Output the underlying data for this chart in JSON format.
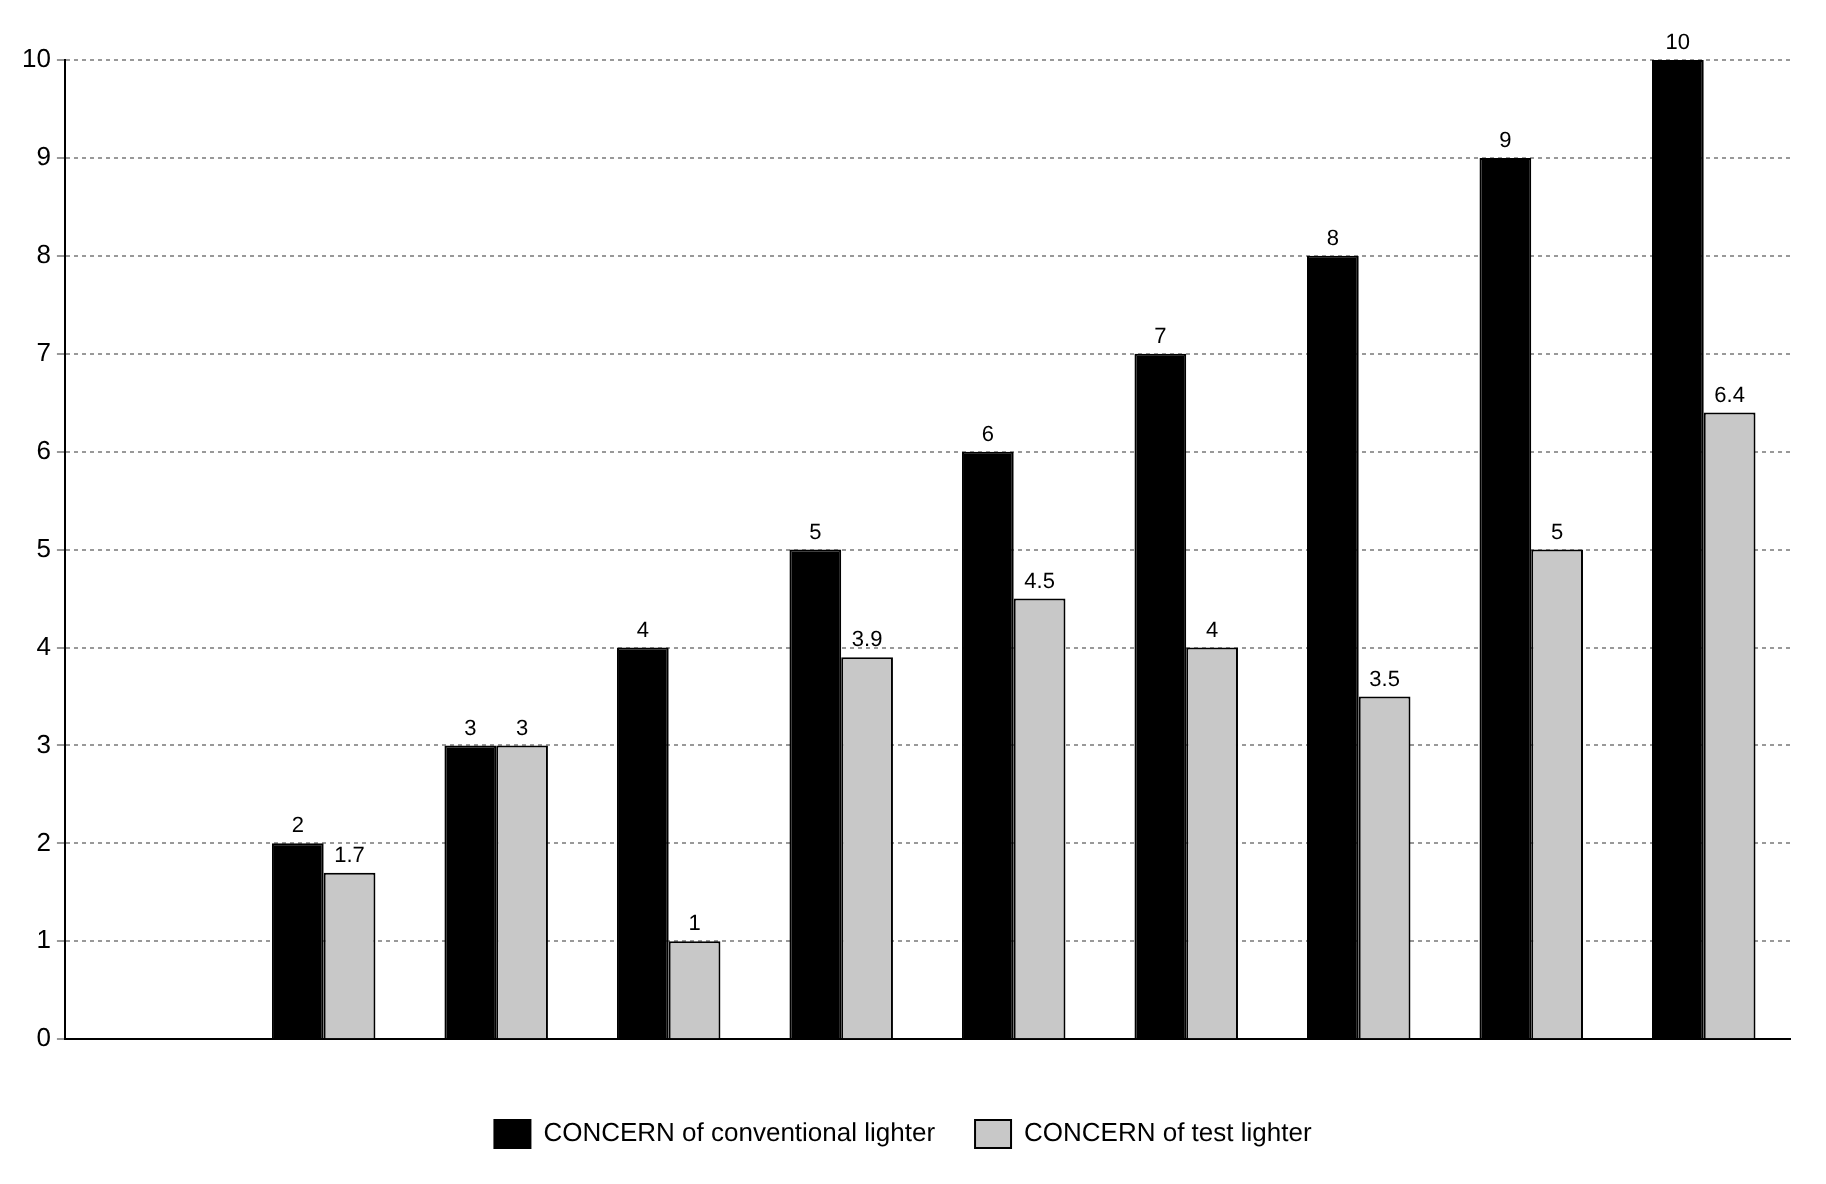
{
  "chart_data": {
    "type": "bar",
    "categories": [
      null,
      null,
      null,
      null,
      null,
      null,
      null,
      null,
      null,
      null
    ],
    "series": [
      {
        "name": "CONCERN of conventional lighter",
        "color": "#000000",
        "values": [
          null,
          2,
          3,
          4,
          5,
          6,
          7,
          8,
          9,
          10
        ]
      },
      {
        "name": "CONCERN of test lighter",
        "color": "#c8c8c8",
        "values": [
          null,
          1.7,
          3,
          1,
          3.9,
          4.5,
          4,
          3.5,
          5,
          6.4
        ]
      }
    ],
    "ylim": [
      0,
      10
    ],
    "yticks": [
      0,
      1,
      2,
      3,
      4,
      5,
      6,
      7,
      8,
      9,
      10
    ],
    "grid": "y",
    "legend": "bottom",
    "data_labels": true
  }
}
